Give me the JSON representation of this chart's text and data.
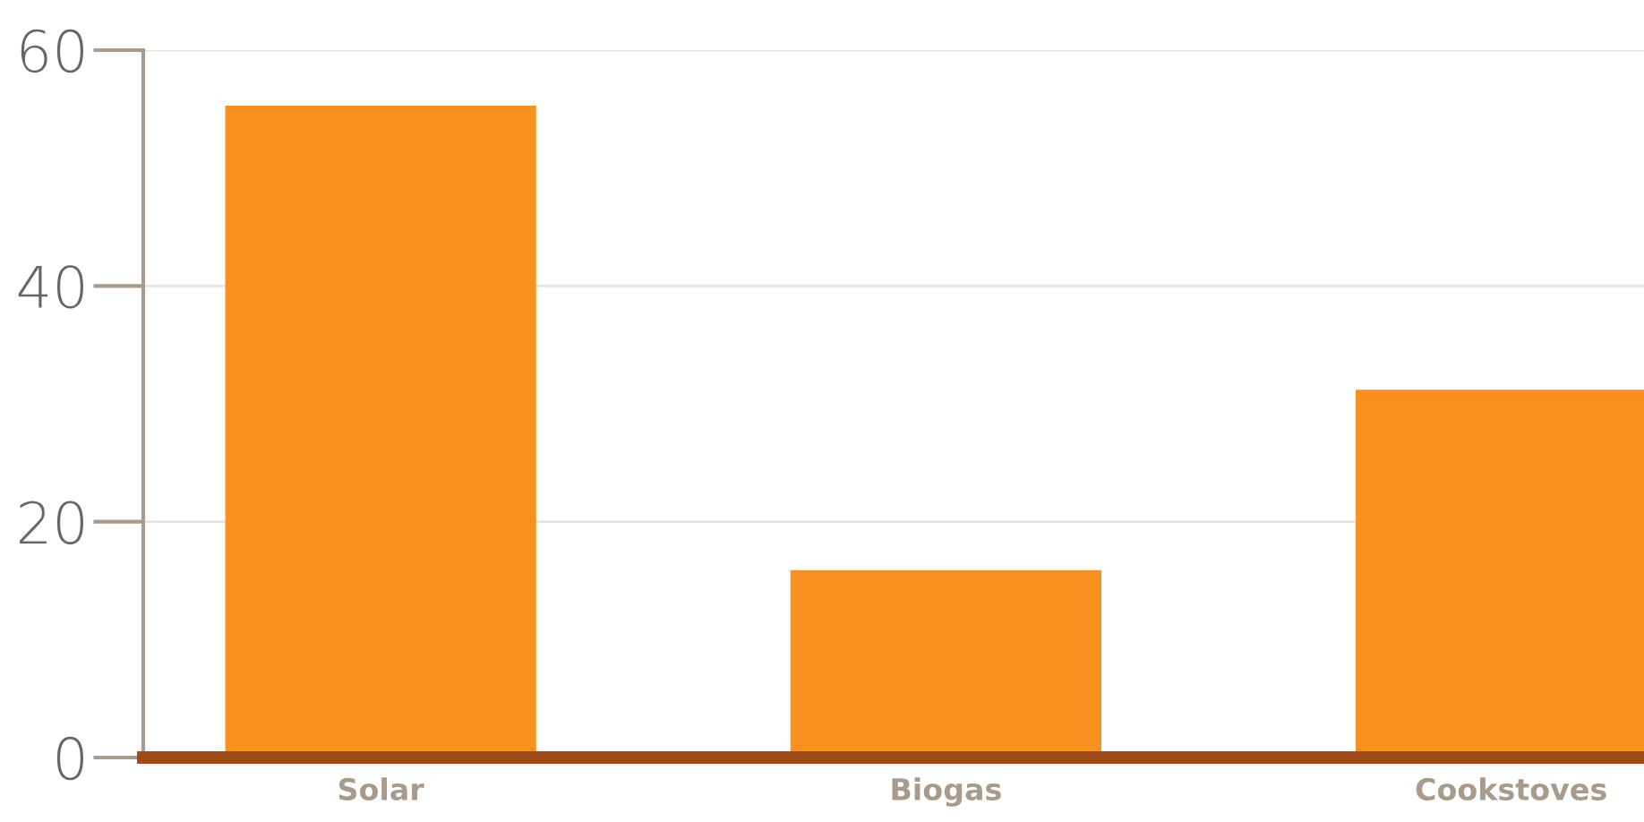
{
  "chart_data": {
    "type": "bar",
    "categories": [
      "Solar",
      "Biogas",
      "Cookstoves"
    ],
    "values": [
      55.3,
      15.9,
      31.2
    ],
    "color": "#f7901e",
    "ylim": [
      0,
      60
    ],
    "yticks": [
      0,
      20,
      40,
      60
    ],
    "grid": "y"
  }
}
